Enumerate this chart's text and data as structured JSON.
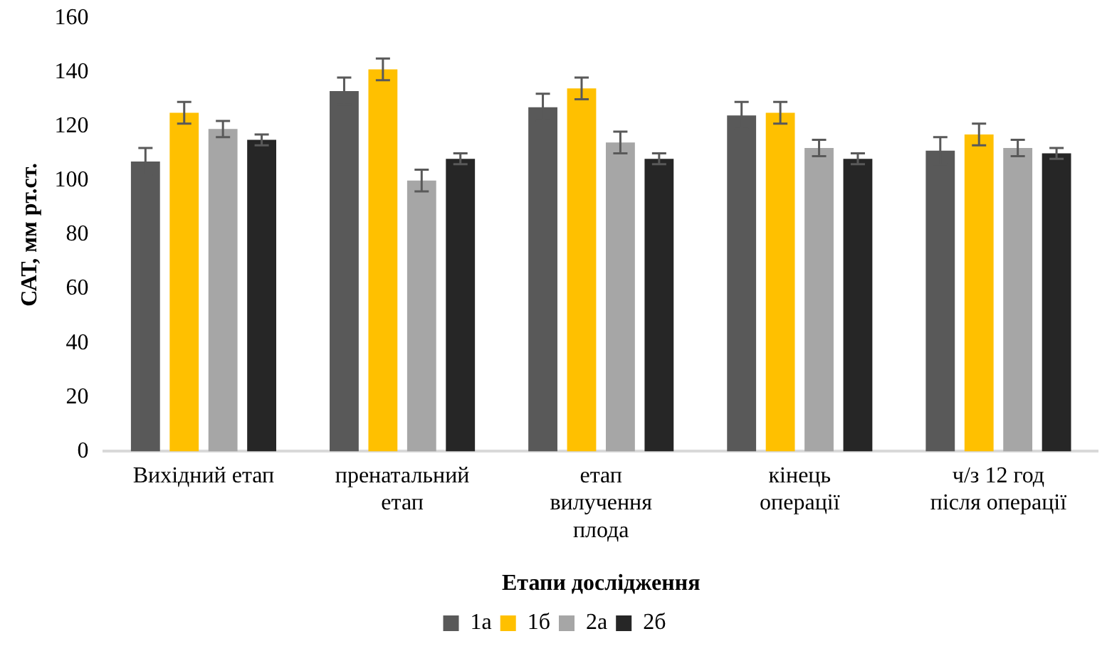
{
  "chart_data": {
    "type": "bar",
    "xlabel": "Етапи дослідження",
    "ylabel": "САТ, мм рт.ст.",
    "categories": [
      "Вихідний етап",
      "пренатальний етап",
      "етап вилучення плода",
      "кінець операції",
      "ч/з 12 год після операції"
    ],
    "series": [
      {
        "name": "1а",
        "color": "#595959",
        "values": [
          107,
          133,
          127,
          124,
          111
        ],
        "errors": [
          5,
          5,
          5,
          5,
          5
        ]
      },
      {
        "name": "1б",
        "color": "#ffc000",
        "values": [
          125,
          141,
          134,
          125,
          117
        ],
        "errors": [
          4,
          4,
          4,
          4,
          4
        ]
      },
      {
        "name": "2а",
        "color": "#a6a6a6",
        "values": [
          119,
          100,
          114,
          112,
          112
        ],
        "errors": [
          3,
          4,
          4,
          3,
          3
        ]
      },
      {
        "name": "2б",
        "color": "#262626",
        "values": [
          115,
          108,
          108,
          108,
          110
        ],
        "errors": [
          2,
          2,
          2,
          2,
          2
        ]
      }
    ],
    "ylim": [
      0,
      160
    ],
    "yticks": [
      0,
      20,
      40,
      60,
      80,
      100,
      120,
      140,
      160
    ],
    "grid": false,
    "legend": "bottom"
  }
}
